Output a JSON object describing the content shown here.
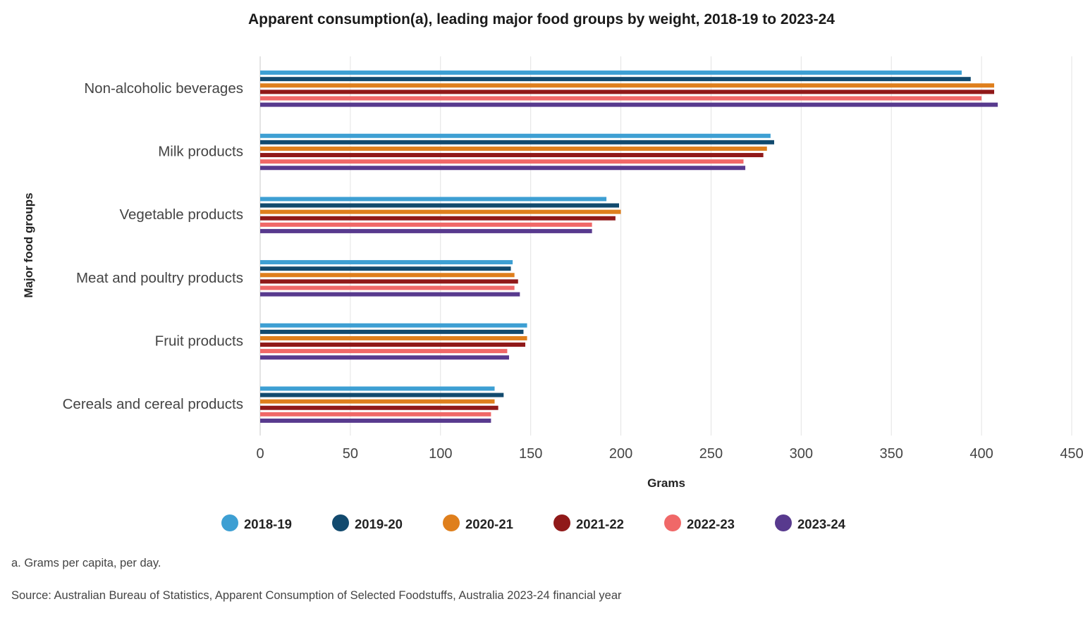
{
  "chart_data": {
    "type": "bar",
    "orientation": "horizontal",
    "title": "Apparent consumption(a), leading major food groups by weight, 2018-19 to 2023-24",
    "xlabel": "Grams",
    "ylabel": "Major food groups",
    "xlim": [
      0,
      450
    ],
    "x_ticks": [
      "0",
      "50",
      "100",
      "150",
      "200",
      "250",
      "300",
      "350",
      "400",
      "450"
    ],
    "grid": "vertical",
    "legend_position": "bottom",
    "categories": [
      "Non-alcoholic beverages",
      "Milk products",
      "Vegetable products",
      "Meat and poultry products",
      "Fruit products",
      "Cereals and cereal products"
    ],
    "series": [
      {
        "name": "2018-19",
        "color": "#3d9fd3",
        "values": [
          389,
          283,
          192,
          140,
          148,
          130
        ]
      },
      {
        "name": "2019-20",
        "color": "#124a6e",
        "values": [
          394,
          285,
          199,
          139,
          146,
          135
        ]
      },
      {
        "name": "2020-21",
        "color": "#df7f1c",
        "values": [
          407,
          281,
          200,
          141,
          148,
          130
        ]
      },
      {
        "name": "2021-22",
        "color": "#901919",
        "values": [
          407,
          279,
          197,
          143,
          147,
          132
        ]
      },
      {
        "name": "2022-23",
        "color": "#f06868",
        "values": [
          400,
          268,
          184,
          141,
          137,
          128
        ]
      },
      {
        "name": "2023-24",
        "color": "#583a8e",
        "values": [
          409,
          269,
          184,
          144,
          138,
          128
        ]
      }
    ]
  },
  "footnote": "a. Grams per capita, per day.",
  "source": "Source: Australian Bureau of Statistics, Apparent Consumption of Selected Foodstuffs, Australia 2023-24 financial year"
}
